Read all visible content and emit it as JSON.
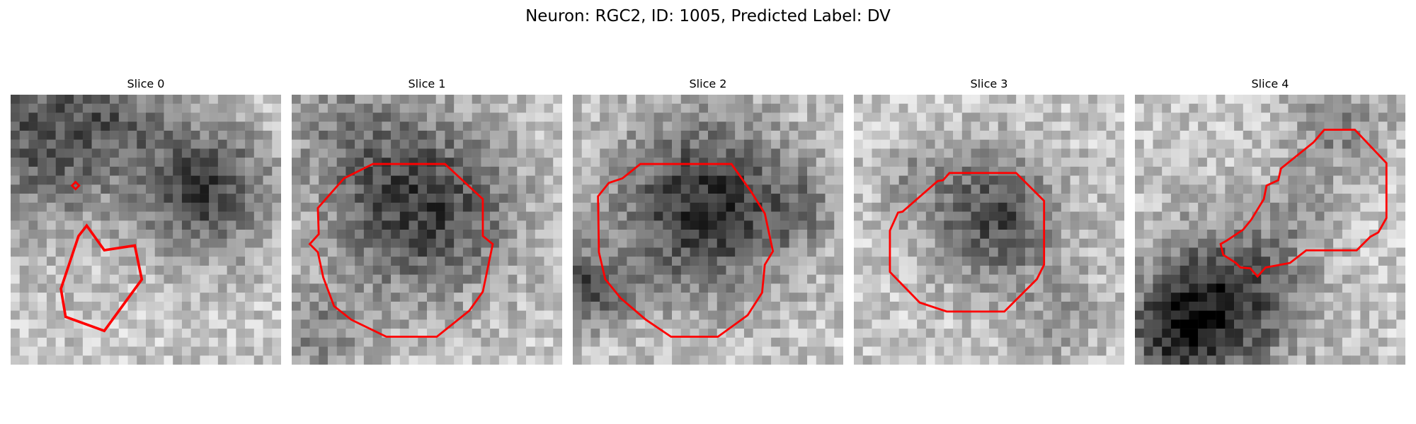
{
  "figure": {
    "title": "Neuron: RGC2, ID: 1005, Predicted Label: DV"
  },
  "panels": [
    {
      "title": "Slice 0"
    },
    {
      "title": "Slice 1"
    },
    {
      "title": "Slice 2"
    },
    {
      "title": "Slice 3"
    },
    {
      "title": "Slice 4"
    }
  ],
  "colors": {
    "contour": "#ff0000"
  }
}
